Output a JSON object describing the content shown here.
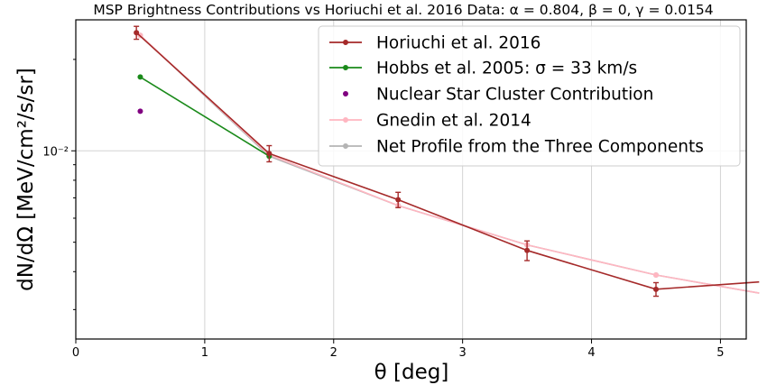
{
  "chart_data": {
    "type": "line",
    "title": "MSP Brightness Contributions vs Horiuchi et al. 2016 Data: α = 0.804, β = 0, γ = 0.0154",
    "xlabel": "θ [deg]",
    "ylabel": "dN/dΩ [MeV/cm²/s/sr]",
    "xlim": [
      0,
      5.2
    ],
    "ylim": [
      0.0024,
      0.027
    ],
    "yscale": "log",
    "grid": true,
    "legend_position": "top-right",
    "x_ticks": [
      0,
      1,
      2,
      3,
      4,
      5
    ],
    "x_tick_labels": [
      "0",
      "1",
      "2",
      "3",
      "4",
      "5"
    ],
    "y_ticks": [
      0.01
    ],
    "y_tick_labels": [
      "10⁻²"
    ],
    "series": [
      {
        "name": "Horiuchi et al. 2016",
        "color": "#a52a2a",
        "style": "line-marker-errorbar",
        "x": [
          0.47,
          1.5,
          2.5,
          3.5,
          4.5,
          5.3
        ],
        "y": [
          0.0245,
          0.0098,
          0.0069,
          0.0047,
          0.0035,
          0.0037
        ],
        "yerr": [
          0.0012,
          0.0006,
          0.0004,
          0.00035,
          0.00018,
          0
        ]
      },
      {
        "name": "Hobbs et al. 2005: σ = 33 km/s",
        "color": "#1a8a1a",
        "style": "line-marker",
        "x": [
          0.5,
          1.5
        ],
        "y": [
          0.0175,
          0.0096
        ]
      },
      {
        "name": "Nuclear Star Cluster Contribution",
        "color": "#800080",
        "style": "marker",
        "x": [
          0.5
        ],
        "y": [
          0.0135
        ]
      },
      {
        "name": "Gnedin et al. 2014",
        "color": "#ffb6c1",
        "style": "line-marker",
        "x": [
          0.5,
          1.5,
          2.5,
          3.5,
          4.5,
          5.3
        ],
        "y": [
          0.024,
          0.0097,
          0.0066,
          0.0049,
          0.0039,
          0.0034
        ]
      },
      {
        "name": "Net Profile from the Three Components",
        "color": "#b4b4b4",
        "style": "line-marker",
        "x": [
          0.5,
          1.5,
          2.5,
          3.5,
          4.5,
          5.3
        ],
        "y": [
          0.024,
          0.0096,
          0.0066,
          0.0049,
          0.0039,
          0.0034
        ]
      }
    ]
  }
}
